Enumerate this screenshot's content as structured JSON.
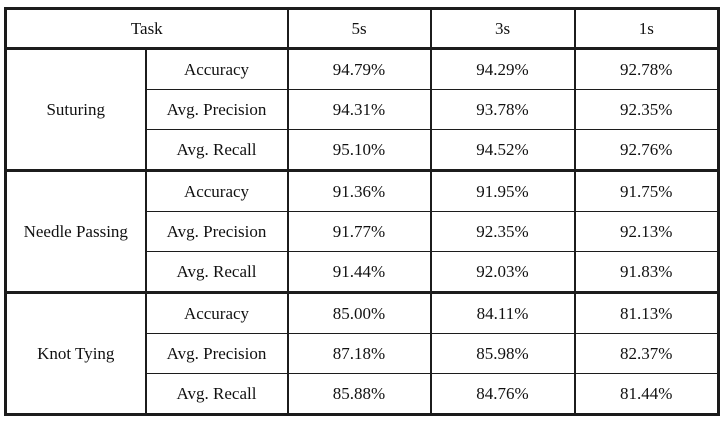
{
  "table": {
    "header": {
      "task": "Task",
      "cols": [
        "5s",
        "3s",
        "1s"
      ]
    },
    "groups": [
      {
        "task": "Suturing",
        "rows": [
          {
            "metric": "Accuracy",
            "values": [
              "94.79%",
              "94.29%",
              "92.78%"
            ]
          },
          {
            "metric": "Avg. Precision",
            "values": [
              "94.31%",
              "93.78%",
              "92.35%"
            ]
          },
          {
            "metric": "Avg. Recall",
            "values": [
              "95.10%",
              "94.52%",
              "92.76%"
            ]
          }
        ]
      },
      {
        "task": "Needle Passing",
        "rows": [
          {
            "metric": "Accuracy",
            "values": [
              "91.36%",
              "91.95%",
              "91.75%"
            ]
          },
          {
            "metric": "Avg. Precision",
            "values": [
              "91.77%",
              "92.35%",
              "92.13%"
            ]
          },
          {
            "metric": "Avg. Recall",
            "values": [
              "91.44%",
              "92.03%",
              "91.83%"
            ]
          }
        ]
      },
      {
        "task": "Knot Tying",
        "rows": [
          {
            "metric": "Accuracy",
            "values": [
              "85.00%",
              "84.11%",
              "81.13%"
            ]
          },
          {
            "metric": "Avg. Precision",
            "values": [
              "87.18%",
              "85.98%",
              "82.37%"
            ]
          },
          {
            "metric": "Avg. Recall",
            "values": [
              "85.88%",
              "84.76%",
              "81.44%"
            ]
          }
        ]
      }
    ]
  }
}
